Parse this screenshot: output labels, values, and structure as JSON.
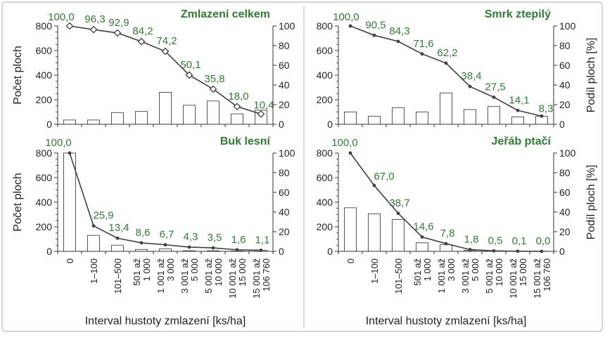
{
  "axes": {
    "left_label": "Počet ploch",
    "right_label": "Podíl ploch [%]",
    "x_label": "Interval hustoty zmlazení [ks/ha]",
    "left_ticks": [
      "0",
      "200",
      "400",
      "600",
      "800"
    ],
    "right_ticks": [
      "0",
      "20",
      "40",
      "60",
      "80",
      "100"
    ]
  },
  "colors": {
    "title": "#2e7d32",
    "label_green": "#2e7d32",
    "line": "#404040",
    "bar_edge": "#555555",
    "bar_fill": "#ffffff",
    "frame": "#bbbbbb"
  },
  "chart_data": [
    {
      "type": "bar",
      "title": "Zmlazení celkem",
      "categories": [
        "0",
        "1–100",
        "101–500",
        "501 až 1 000",
        "1 001 až 3 000",
        "3 001 až 5 000",
        "5 001 až 10 000",
        "10 001 až 15 000",
        "15 001 až 106 760"
      ],
      "ylim_left": [
        0,
        800
      ],
      "ylim_right": [
        0,
        100
      ],
      "bar_values": [
        35,
        35,
        95,
        105,
        260,
        155,
        190,
        85,
        115
      ],
      "line_values": [
        100.0,
        96.3,
        92.9,
        84.2,
        74.2,
        50.1,
        35.8,
        18.0,
        10.4
      ],
      "line_labels": [
        "100,0",
        "96,3",
        "92,9",
        "84,2",
        "74,2",
        "50,1",
        "35,8",
        "18,0",
        "10,4"
      ],
      "marker": "diamond",
      "ylabel_left": "Počet ploch",
      "ylabel_right": ""
    },
    {
      "type": "bar",
      "title": "Smrk ztepilý",
      "categories": [
        "0",
        "1–100",
        "101–500",
        "501 až 1 000",
        "1 001 až 3 000",
        "3 001 až 5 000",
        "5 001 až 10 000",
        "10 001 až 15 000",
        "15 001 až 106 760"
      ],
      "ylim_left": [
        0,
        800
      ],
      "ylim_right": [
        0,
        100
      ],
      "bar_values": [
        100,
        65,
        135,
        100,
        255,
        120,
        145,
        60,
        65
      ],
      "line_values": [
        100.0,
        90.5,
        84.3,
        71.6,
        62.2,
        38.4,
        27.5,
        14.1,
        8.3
      ],
      "line_labels": [
        "100,0",
        "90,5",
        "84,3",
        "71,6",
        "62,2",
        "38,4",
        "27,5",
        "14,1",
        "8,3"
      ],
      "marker": "dot",
      "ylabel_left": "",
      "ylabel_right": "Podíl ploch [%]"
    },
    {
      "type": "bar",
      "title": "Buk lesní",
      "categories": [
        "0",
        "1–100",
        "101–500",
        "501 až 1 000",
        "1 001 až 3 000",
        "3 001 až 5 000",
        "5 001 až 10 000",
        "10 001 až 15 000",
        "15 001 až 106 760"
      ],
      "ylim_left": [
        0,
        800
      ],
      "ylim_right": [
        0,
        100
      ],
      "bar_values": [
        800,
        130,
        50,
        15,
        20,
        5,
        5,
        3,
        8
      ],
      "line_values": [
        100.0,
        25.9,
        13.4,
        8.6,
        6.7,
        4.3,
        3.5,
        1.6,
        1.1
      ],
      "line_labels": [
        "100,0",
        "25,9",
        "13,4",
        "8,6",
        "6,7",
        "4,3",
        "3,5",
        "1,6",
        "1,1"
      ],
      "marker": "dot",
      "ylabel_left": "Počet ploch",
      "ylabel_right": ""
    },
    {
      "type": "bar",
      "title": "Jeřáb ptačí",
      "categories": [
        "0",
        "1–100",
        "101–500",
        "501 až 1 000",
        "1 001 až 3 000",
        "3 001 až 5 000",
        "5 001 až 10 000",
        "10 001 až 15 000",
        "15 001 až 106 760"
      ],
      "ylim_left": [
        0,
        800
      ],
      "ylim_right": [
        0,
        100
      ],
      "bar_values": [
        355,
        305,
        260,
        70,
        55,
        8,
        3,
        2,
        1
      ],
      "line_values": [
        100.0,
        67.0,
        38.7,
        14.6,
        7.8,
        1.8,
        0.5,
        0.1,
        0.0
      ],
      "line_labels": [
        "100,0",
        "67,0",
        "38,7",
        "14,6",
        "7,8",
        "1,8",
        "0,5",
        "0,1",
        "0,0"
      ],
      "marker": "dot",
      "ylabel_left": "",
      "ylabel_right": "Podíl ploch [%]"
    }
  ]
}
